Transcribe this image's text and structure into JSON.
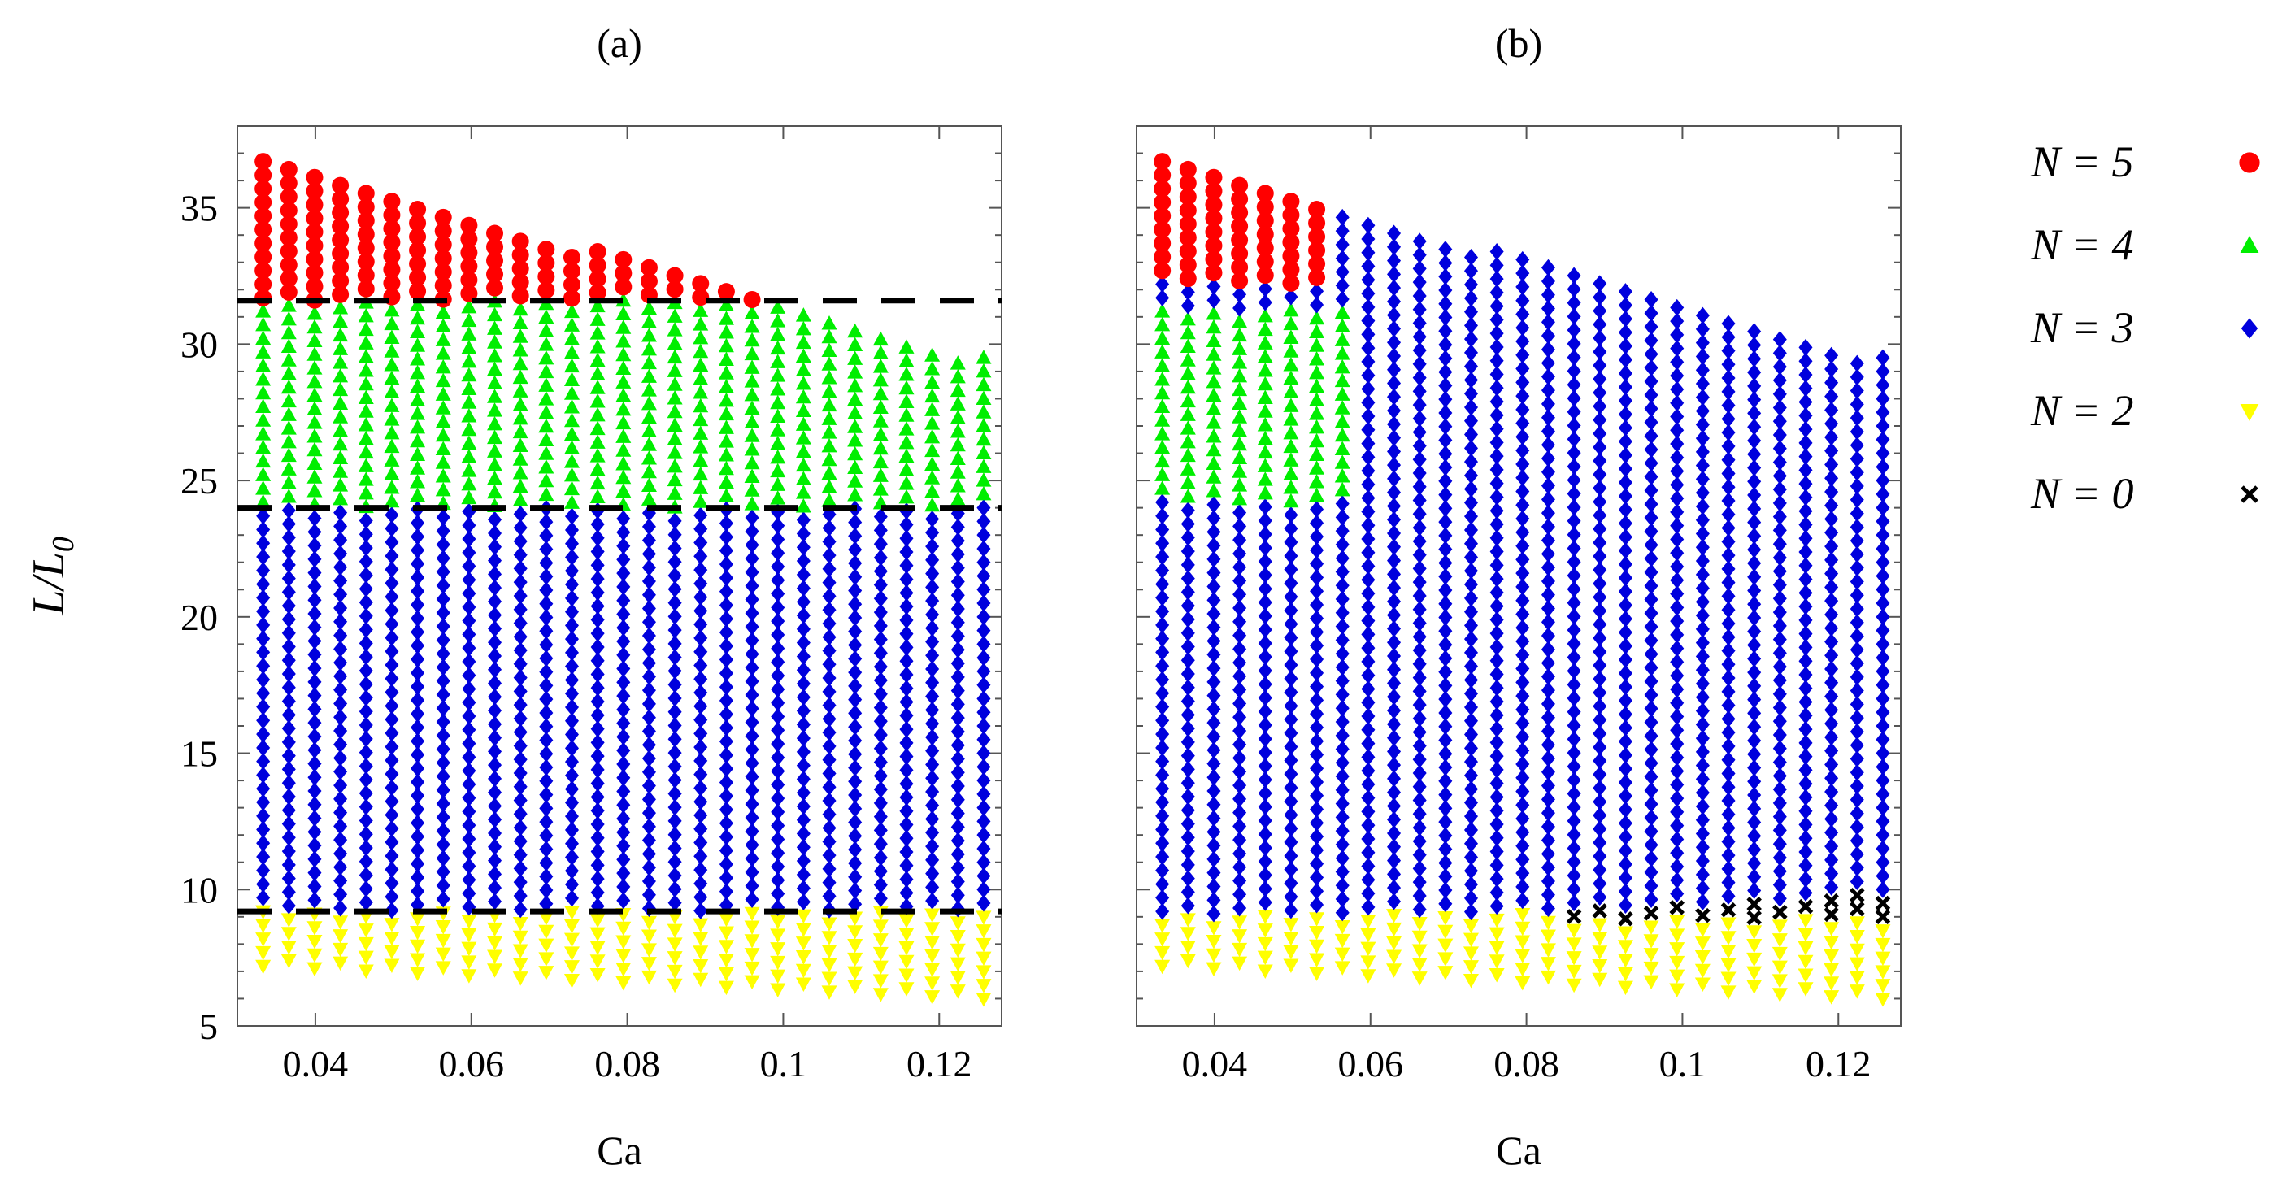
{
  "chart_data": [
    {
      "type": "scatter",
      "title": "(a)",
      "xlabel": "Ca",
      "ylabel": "L/L0",
      "xlim": [
        0.03,
        0.128
      ],
      "ylim": [
        5,
        38
      ],
      "xticks": [
        {
          "value": 0.04,
          "label": "0.04"
        },
        {
          "value": 0.06,
          "label": "0.06"
        },
        {
          "value": 0.08,
          "label": "0.08"
        },
        {
          "value": 0.1,
          "label": "0.1"
        },
        {
          "value": 0.12,
          "label": "0.12"
        }
      ],
      "yticks": [
        {
          "value": 5,
          "label": "5"
        },
        {
          "value": 10,
          "label": "10"
        },
        {
          "value": 15,
          "label": "15"
        },
        {
          "value": 20,
          "label": "20"
        },
        {
          "value": 25,
          "label": "25"
        },
        {
          "value": 30,
          "label": "30"
        },
        {
          "value": 35,
          "label": "35"
        }
      ],
      "dashed_lines": [
        31.6,
        24.0,
        9.2
      ],
      "grid": {
        "ca_start": 0.0333,
        "ca_step": 0.0033,
        "ca_count": 29,
        "y_step": 0.5,
        "top_start": 36.8,
        "top_end": 29.5,
        "bottom_start": 7.2,
        "bottom_end": 6.0
      },
      "regions": [
        {
          "series": "N5",
          "rule": "y > 31.6"
        },
        {
          "series": "N4",
          "rule": "24.0 < y <= 31.6"
        },
        {
          "series": "N3",
          "rule": "9.2 < y <= 24.0"
        },
        {
          "series": "N2",
          "rule": "y <= 9.2"
        }
      ]
    },
    {
      "type": "scatter",
      "title": "(b)",
      "xlabel": "Ca",
      "ylabel": "",
      "xlim": [
        0.03,
        0.128
      ],
      "ylim": [
        5,
        38
      ],
      "xticks": [
        {
          "value": 0.04,
          "label": "0.04"
        },
        {
          "value": 0.06,
          "label": "0.06"
        },
        {
          "value": 0.08,
          "label": "0.08"
        },
        {
          "value": 0.1,
          "label": "0.1"
        },
        {
          "value": 0.12,
          "label": "0.12"
        }
      ],
      "yticks": [],
      "dashed_lines": [],
      "grid": {
        "ca_start": 0.0333,
        "ca_step": 0.0033,
        "ca_count": 29,
        "y_step": 0.5,
        "top_start": 36.8,
        "top_end": 29.5,
        "bottom_start": 7.2,
        "bottom_end": 6.0
      },
      "regions": [
        {
          "series": "N5",
          "rule": "y > 32.2 and Ca <= 0.054"
        },
        {
          "series": "N4",
          "rule": "24.2 < y <= 31.3 and Ca <= 0.057"
        },
        {
          "series": "N0",
          "rule": "Ca >= 0.083 and 8.9 < y <= 9.1 + 19.2*(Ca - 0.083)"
        },
        {
          "series": "N3",
          "rule": "9.1 < y (remaining)"
        },
        {
          "series": "N2",
          "rule": "y <= 9.1"
        }
      ]
    }
  ],
  "legend": [
    {
      "key": "N5",
      "label": "N = 5",
      "color": "#ff0000",
      "marker": "circle"
    },
    {
      "key": "N4",
      "label": "N = 4",
      "color": "#00ee00",
      "marker": "triangle-up"
    },
    {
      "key": "N3",
      "label": "N = 3",
      "color": "#0000dd",
      "marker": "diamond"
    },
    {
      "key": "N2",
      "label": "N = 2",
      "color": "#ffff00",
      "marker": "triangle-down"
    },
    {
      "key": "N0",
      "label": "N = 0",
      "color": "#000000",
      "marker": "cross"
    }
  ]
}
